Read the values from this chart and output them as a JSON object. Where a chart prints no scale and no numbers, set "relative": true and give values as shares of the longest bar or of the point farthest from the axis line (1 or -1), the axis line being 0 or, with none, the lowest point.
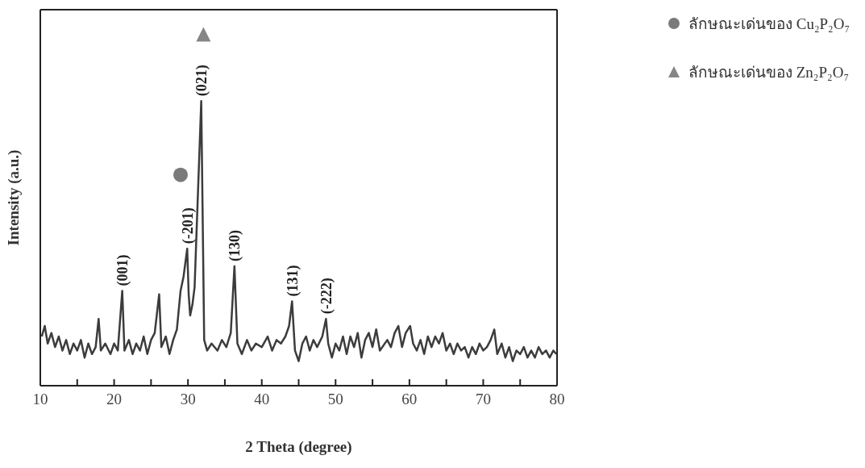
{
  "chart_data": {
    "type": "line",
    "relative": true,
    "xlabel": "2 Theta (degree)",
    "ylabel": "Intensity (a.u.)",
    "xlim": [
      10,
      80
    ],
    "xticks": [
      10,
      {
        "value": 15,
        "label": null
      },
      20,
      {
        "value": 25,
        "label": null
      },
      30,
      {
        "value": 35,
        "label": null
      },
      40,
      {
        "value": 45,
        "label": null
      },
      50,
      {
        "value": 55,
        "label": null
      },
      60,
      {
        "value": 65,
        "label": null
      },
      70,
      {
        "value": 75,
        "label": null
      },
      80
    ],
    "legend": "right",
    "series": [
      {
        "color": "#3c3c3c",
        "marker": "none",
        "x": [
          10.2,
          10.6,
          11.0,
          11.5,
          12.0,
          12.5,
          13.0,
          13.5,
          14.0,
          14.5,
          15.0,
          15.5,
          16.0,
          16.5,
          17.0,
          17.5,
          17.9,
          18.2,
          18.8,
          19.5,
          20.0,
          20.5,
          21.1,
          21.4,
          22.0,
          22.5,
          23.0,
          23.5,
          24.0,
          24.5,
          25.0,
          25.5,
          26.1,
          26.4,
          27.0,
          27.5,
          28.0,
          28.5,
          29.0,
          29.4,
          29.9,
          30.1,
          30.3,
          30.6,
          30.9,
          31.8,
          32.2,
          32.6,
          33.2,
          34.0,
          34.6,
          35.2,
          35.8,
          36.3,
          36.7,
          37.3,
          38.0,
          38.6,
          39.2,
          40.0,
          40.8,
          41.4,
          42.0,
          42.6,
          43.2,
          43.7,
          44.1,
          44.5,
          45.0,
          45.5,
          46.0,
          46.5,
          47.0,
          47.5,
          48.2,
          48.7,
          49.0,
          49.5,
          50.0,
          50.5,
          51.0,
          51.5,
          52.0,
          52.5,
          53.0,
          53.5,
          54.0,
          54.5,
          55.0,
          55.5,
          56.0,
          57.0,
          57.5,
          58.0,
          58.5,
          59.0,
          59.5,
          60.1,
          60.5,
          61.0,
          61.5,
          62.0,
          62.5,
          63.0,
          63.5,
          64.0,
          64.5,
          65.0,
          65.5,
          66.0,
          66.5,
          67.0,
          67.5,
          68.0,
          68.5,
          69.0,
          69.5,
          70.0,
          70.5,
          71.0,
          71.5,
          71.9,
          72.5,
          73.0,
          73.5,
          74.0,
          74.5,
          75.0,
          75.5,
          76.0,
          76.5,
          77.0,
          77.5,
          78.0,
          78.5,
          79.0,
          79.5,
          79.9
        ],
        "values": [
          0.14,
          0.17,
          0.12,
          0.15,
          0.11,
          0.14,
          0.1,
          0.13,
          0.09,
          0.12,
          0.1,
          0.13,
          0.08,
          0.12,
          0.09,
          0.11,
          0.19,
          0.1,
          0.12,
          0.09,
          0.12,
          0.1,
          0.27,
          0.1,
          0.13,
          0.09,
          0.12,
          0.1,
          0.14,
          0.09,
          0.13,
          0.15,
          0.26,
          0.11,
          0.14,
          0.09,
          0.13,
          0.16,
          0.27,
          0.31,
          0.39,
          0.26,
          0.2,
          0.23,
          0.28,
          0.81,
          0.13,
          0.1,
          0.12,
          0.1,
          0.13,
          0.11,
          0.15,
          0.34,
          0.12,
          0.09,
          0.13,
          0.1,
          0.12,
          0.11,
          0.14,
          0.1,
          0.13,
          0.12,
          0.14,
          0.17,
          0.24,
          0.1,
          0.07,
          0.12,
          0.14,
          0.1,
          0.13,
          0.11,
          0.14,
          0.19,
          0.12,
          0.08,
          0.12,
          0.1,
          0.14,
          0.09,
          0.14,
          0.11,
          0.15,
          0.08,
          0.13,
          0.15,
          0.11,
          0.16,
          0.1,
          0.13,
          0.11,
          0.15,
          0.17,
          0.11,
          0.15,
          0.17,
          0.12,
          0.1,
          0.13,
          0.09,
          0.14,
          0.11,
          0.14,
          0.12,
          0.15,
          0.1,
          0.12,
          0.09,
          0.12,
          0.1,
          0.11,
          0.08,
          0.11,
          0.09,
          0.12,
          0.1,
          0.11,
          0.13,
          0.16,
          0.09,
          0.12,
          0.08,
          0.11,
          0.07,
          0.1,
          0.09,
          0.11,
          0.08,
          0.1,
          0.08,
          0.11,
          0.09,
          0.1,
          0.08,
          0.1,
          0.09
        ]
      },
      {
        "type": "scatter",
        "name": "ลักษณะเด่นของ Cu₂P₂O₇",
        "color": "#7a7a7a",
        "marker": "circle",
        "x": [
          29.0
        ],
        "values": [
          0.6
        ]
      },
      {
        "type": "scatter",
        "name": "ลักษณะเด่นของ Zn₂P₂O₇",
        "color": "#858585",
        "marker": "triangle",
        "x": [
          32.1
        ],
        "values": [
          1.0
        ]
      }
    ],
    "annotations": [
      {
        "text": "(001)",
        "x": 21.1,
        "y": 0.27
      },
      {
        "text": "(-201)",
        "x": 29.9,
        "y": 0.39
      },
      {
        "text": "(021)",
        "x": 31.8,
        "y": 0.81
      },
      {
        "text": "(130)",
        "x": 36.3,
        "y": 0.34
      },
      {
        "text": "(131)",
        "x": 44.1,
        "y": 0.24
      },
      {
        "text": "(-222)",
        "x": 48.7,
        "y": 0.19
      }
    ]
  }
}
